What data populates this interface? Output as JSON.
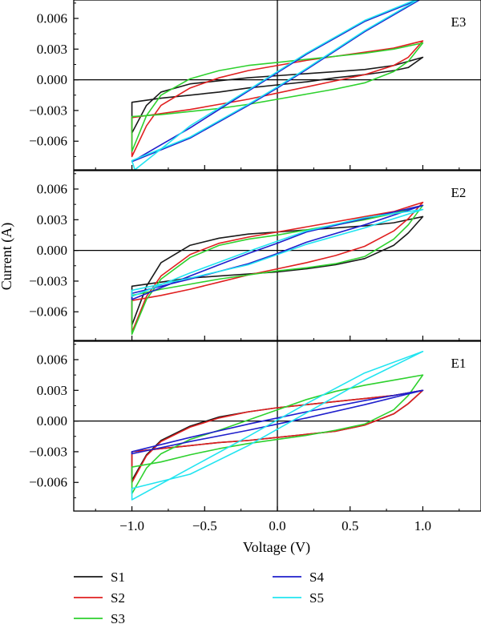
{
  "chart_data": {
    "type": "line",
    "xlabel": "Voltage (V)",
    "ylabel": "Current (A)",
    "xlim": [
      -1.4,
      1.4
    ],
    "xticks": [
      -1.0,
      -0.5,
      0.0,
      0.5,
      1.0
    ],
    "xtick_labels": [
      "−1.0",
      "−0.5",
      "0.0",
      "0.5",
      "1.0"
    ],
    "ylim": [
      -0.0088,
      0.0078
    ],
    "yticks": [
      -0.006,
      -0.003,
      0.0,
      0.003,
      0.006
    ],
    "ytick_labels": [
      "−0.006",
      "−0.003",
      "0.000",
      "0.003",
      "0.006"
    ],
    "grid": false,
    "legend_position": "bottom",
    "series_styles": [
      {
        "name": "S1",
        "color": "#1a1a1a"
      },
      {
        "name": "S2",
        "color": "#e02020"
      },
      {
        "name": "S3",
        "color": "#2ed12e"
      },
      {
        "name": "S4",
        "color": "#1f1fcc"
      },
      {
        "name": "S5",
        "color": "#22e4f0"
      }
    ],
    "panels": [
      {
        "label": "E3",
        "series": [
          {
            "name": "S1",
            "x": [
              -1.0,
              -0.9,
              -0.8,
              -0.6,
              -0.4,
              -0.2,
              0.0,
              0.2,
              0.4,
              0.6,
              0.8,
              1.0,
              0.9,
              0.8,
              0.6,
              0.4,
              0.2,
              0.0,
              -0.2,
              -0.4,
              -0.6,
              -0.8,
              -1.0
            ],
            "y": [
              -0.0052,
              -0.0025,
              -0.0012,
              -0.0004,
              -0.0001,
              0.0002,
              0.0004,
              0.0006,
              0.0008,
              0.001,
              0.0014,
              0.0022,
              0.0012,
              0.0009,
              0.0005,
              0.0002,
              -0.0002,
              -0.0005,
              -0.0008,
              -0.0012,
              -0.0015,
              -0.0018,
              -0.0022
            ]
          },
          {
            "name": "S2",
            "x": [
              -1.0,
              -0.9,
              -0.8,
              -0.6,
              -0.4,
              -0.2,
              0.0,
              0.2,
              0.4,
              0.6,
              0.8,
              1.0,
              0.9,
              0.8,
              0.6,
              0.4,
              0.2,
              0.0,
              -0.2,
              -0.4,
              -0.6,
              -0.8,
              -1.0
            ],
            "y": [
              -0.0075,
              -0.0045,
              -0.0025,
              -0.0008,
              0.0002,
              0.0009,
              0.0014,
              0.0019,
              0.0023,
              0.0027,
              0.0031,
              0.0038,
              0.0022,
              0.0014,
              0.0005,
              -0.0001,
              -0.0007,
              -0.0013,
              -0.0019,
              -0.0024,
              -0.0029,
              -0.0033,
              -0.0037
            ]
          },
          {
            "name": "S3",
            "x": [
              -1.0,
              -0.9,
              -0.8,
              -0.6,
              -0.4,
              -0.2,
              0.0,
              0.2,
              0.4,
              0.6,
              0.8,
              1.0,
              0.9,
              0.8,
              0.6,
              0.4,
              0.2,
              0.0,
              -0.2,
              -0.4,
              -0.6,
              -0.8,
              -1.0
            ],
            "y": [
              -0.007,
              -0.0035,
              -0.0015,
              0.0001,
              0.0009,
              0.0014,
              0.0017,
              0.002,
              0.0023,
              0.0026,
              0.003,
              0.0036,
              0.0018,
              0.0008,
              -0.0003,
              -0.0009,
              -0.0014,
              -0.0019,
              -0.0024,
              -0.0028,
              -0.0031,
              -0.0034,
              -0.0036
            ]
          },
          {
            "name": "S4",
            "x": [
              -1.0,
              -0.6,
              -0.2,
              0.0,
              0.2,
              0.6,
              1.0,
              0.6,
              0.2,
              0.0,
              -0.2,
              -0.6,
              -1.0
            ],
            "y": [
              -0.008,
              -0.0047,
              -0.0011,
              0.0007,
              0.0025,
              0.0057,
              0.008,
              0.0047,
              0.001,
              -0.0008,
              -0.0025,
              -0.0057,
              -0.008
            ]
          },
          {
            "name": "S5",
            "x": [
              -0.98,
              -0.6,
              -0.2,
              0.0,
              0.2,
              0.6,
              1.0,
              0.6,
              0.2,
              0.0,
              -0.2,
              -0.6,
              -1.0
            ],
            "y": [
              -0.0088,
              -0.0045,
              -0.001,
              0.0008,
              0.0026,
              0.0058,
              0.0081,
              0.0048,
              0.0011,
              -0.0007,
              -0.0024,
              -0.0056,
              -0.0079
            ]
          }
        ]
      },
      {
        "label": "E2",
        "series": [
          {
            "name": "S1",
            "x": [
              -1.0,
              -0.9,
              -0.8,
              -0.6,
              -0.4,
              -0.2,
              0.0,
              0.2,
              0.4,
              0.6,
              0.8,
              1.0,
              0.9,
              0.8,
              0.6,
              0.4,
              0.2,
              0.0,
              -0.2,
              -0.4,
              -0.6,
              -0.8,
              -1.0
            ],
            "y": [
              -0.0073,
              -0.0035,
              -0.0012,
              0.0005,
              0.0012,
              0.0016,
              0.0018,
              0.002,
              0.0022,
              0.0024,
              0.0027,
              0.0033,
              0.0017,
              0.0005,
              -0.0008,
              -0.0014,
              -0.0018,
              -0.0021,
              -0.0023,
              -0.0025,
              -0.0027,
              -0.0031,
              -0.0035
            ]
          },
          {
            "name": "S2",
            "x": [
              -1.0,
              -0.9,
              -0.8,
              -0.6,
              -0.4,
              -0.2,
              0.0,
              0.2,
              0.4,
              0.6,
              0.8,
              1.0,
              0.9,
              0.8,
              0.6,
              0.4,
              0.2,
              0.0,
              -0.2,
              -0.4,
              -0.6,
              -0.8,
              -1.0
            ],
            "y": [
              -0.008,
              -0.0045,
              -0.0025,
              -0.0004,
              0.0007,
              0.0013,
              0.0018,
              0.0023,
              0.0028,
              0.0033,
              0.0038,
              0.0047,
              0.0031,
              0.0019,
              0.0004,
              -0.0005,
              -0.0012,
              -0.0018,
              -0.0024,
              -0.0031,
              -0.0038,
              -0.0044,
              -0.0049
            ]
          },
          {
            "name": "S3",
            "x": [
              -1.0,
              -0.9,
              -0.8,
              -0.6,
              -0.4,
              -0.2,
              0.0,
              0.2,
              0.4,
              0.6,
              0.8,
              1.0,
              0.9,
              0.8,
              0.6,
              0.4,
              0.2,
              0.0,
              -0.2,
              -0.4,
              -0.6,
              -0.8,
              -1.0
            ],
            "y": [
              -0.0082,
              -0.0048,
              -0.0028,
              -0.0007,
              0.0005,
              0.0011,
              0.0015,
              0.002,
              0.0025,
              0.003,
              0.0036,
              0.0044,
              0.0025,
              0.0011,
              -0.0006,
              -0.0013,
              -0.0017,
              -0.002,
              -0.0024,
              -0.0028,
              -0.0033,
              -0.0038,
              -0.0044
            ]
          },
          {
            "name": "S4",
            "x": [
              -1.0,
              -0.6,
              -0.2,
              0.0,
              0.2,
              0.6,
              1.0,
              0.6,
              0.2,
              0.0,
              -0.2,
              -0.6,
              -1.0
            ],
            "y": [
              -0.0048,
              -0.0025,
              -0.0003,
              0.0007,
              0.0018,
              0.0031,
              0.0044,
              0.0025,
              0.0008,
              -0.0003,
              -0.0013,
              -0.0028,
              -0.0042
            ]
          },
          {
            "name": "S5",
            "x": [
              -1.0,
              -0.6,
              -0.2,
              0.0,
              0.2,
              0.6,
              1.0,
              0.6,
              0.2,
              0.0,
              -0.2,
              -0.6,
              -1.0
            ],
            "y": [
              -0.0045,
              -0.0022,
              -0.0001,
              0.0009,
              0.0019,
              0.0032,
              0.004,
              0.0022,
              0.0006,
              -0.0004,
              -0.0014,
              -0.0027,
              -0.0039
            ]
          }
        ]
      },
      {
        "label": "E1",
        "series": [
          {
            "name": "S1",
            "x": [
              -1.0,
              -0.9,
              -0.8,
              -0.6,
              -0.4,
              -0.2,
              0.0,
              0.2,
              0.4,
              0.6,
              0.8,
              1.0,
              0.9,
              0.8,
              0.6,
              0.4,
              0.2,
              0.0,
              -0.2,
              -0.4,
              -0.6,
              -0.8,
              -1.0
            ],
            "y": [
              -0.0058,
              -0.0033,
              -0.0019,
              -0.0005,
              0.0004,
              0.0009,
              0.0013,
              0.0016,
              0.0019,
              0.0022,
              0.0025,
              0.003,
              0.0017,
              0.0007,
              -0.0004,
              -0.001,
              -0.0013,
              -0.0016,
              -0.0019,
              -0.0021,
              -0.0024,
              -0.0027,
              -0.003
            ]
          },
          {
            "name": "S2",
            "x": [
              -1.0,
              -0.9,
              -0.8,
              -0.6,
              -0.4,
              -0.2,
              0.0,
              0.2,
              0.4,
              0.6,
              0.8,
              1.0,
              0.9,
              0.8,
              0.6,
              0.4,
              0.2,
              0.0,
              -0.2,
              -0.4,
              -0.6,
              -0.8,
              -1.0
            ],
            "y": [
              -0.006,
              -0.0034,
              -0.002,
              -0.0006,
              0.0003,
              0.0009,
              0.0013,
              0.0016,
              0.0019,
              0.0022,
              0.0025,
              0.003,
              0.0017,
              0.0007,
              -0.0004,
              -0.001,
              -0.0013,
              -0.0016,
              -0.0019,
              -0.0021,
              -0.0024,
              -0.0027,
              -0.003
            ]
          },
          {
            "name": "S3",
            "x": [
              -1.0,
              -0.9,
              -0.8,
              -0.6,
              -0.4,
              -0.2,
              0.0,
              0.2,
              0.4,
              0.6,
              0.8,
              1.0,
              0.9,
              0.8,
              0.6,
              0.4,
              0.2,
              0.0,
              -0.2,
              -0.4,
              -0.6,
              -0.8,
              -1.0
            ],
            "y": [
              -0.0071,
              -0.0046,
              -0.0032,
              -0.0018,
              -0.0009,
              0.0001,
              0.0011,
              0.0021,
              0.0029,
              0.0035,
              0.004,
              0.0045,
              0.0025,
              0.0011,
              -0.0003,
              -0.0009,
              -0.0014,
              -0.0018,
              -0.0022,
              -0.0027,
              -0.0033,
              -0.004,
              -0.0045
            ]
          },
          {
            "name": "S4",
            "x": [
              -1.0,
              -0.6,
              -0.2,
              0.0,
              0.2,
              0.6,
              1.0,
              0.6,
              0.2,
              0.0,
              -0.2,
              -0.6,
              -1.0
            ],
            "y": [
              -0.0032,
              -0.002,
              -0.0009,
              -0.0003,
              0.0003,
              0.0016,
              0.003,
              0.002,
              0.0009,
              0.0003,
              -0.0003,
              -0.0016,
              -0.003
            ]
          },
          {
            "name": "S5",
            "x": [
              -1.0,
              -0.6,
              -0.2,
              0.0,
              0.2,
              0.6,
              1.0,
              0.6,
              0.2,
              0.0,
              -0.2,
              -0.6,
              -1.0
            ],
            "y": [
              -0.0077,
              -0.0046,
              -0.0015,
              0.0001,
              0.0017,
              0.0047,
              0.0068,
              0.004,
              0.0008,
              -0.0008,
              -0.0024,
              -0.0052,
              -0.0066
            ]
          }
        ]
      }
    ]
  }
}
